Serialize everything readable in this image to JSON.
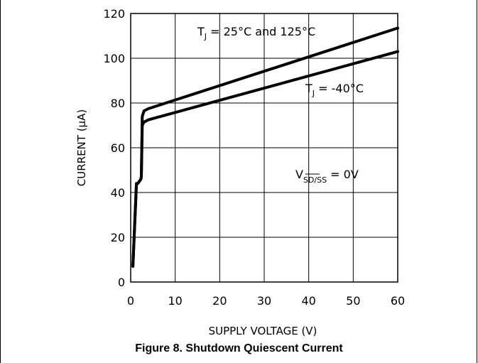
{
  "chart_data": {
    "type": "line",
    "xlabel": "SUPPLY VOLTAGE (V)",
    "ylabel": "CURRENT (μA)",
    "xlim": [
      0,
      60
    ],
    "ylim": [
      0,
      120
    ],
    "xticks": [
      0,
      10,
      20,
      30,
      40,
      50,
      60
    ],
    "yticks": [
      0,
      20,
      40,
      60,
      80,
      100,
      120
    ],
    "grid": true,
    "series": [
      {
        "x": [
          0.5,
          1.3,
          1.6,
          2.3,
          2.4,
          2.6,
          3.0,
          4.0,
          60
        ],
        "y": [
          7,
          44,
          44,
          46,
          47,
          74,
          76.5,
          77.5,
          113.5
        ]
      },
      {
        "x": [
          0.5,
          1.3,
          1.6,
          2.3,
          2.4,
          2.6,
          3.0,
          4.0,
          60
        ],
        "y": [
          7,
          44,
          44,
          46,
          47,
          70,
          71.5,
          72.5,
          103
        ]
      }
    ],
    "annotations": [
      {
        "main": "T",
        "sub": "J",
        "rest": " = 25°C and 125°C"
      },
      {
        "main": "T",
        "sub": "J",
        "rest": " = -40°C"
      },
      {
        "main": "V",
        "sub": "SD/SS",
        "rest": " = 0V"
      }
    ]
  },
  "caption": "Figure 8. Shutdown Quiescent Current"
}
